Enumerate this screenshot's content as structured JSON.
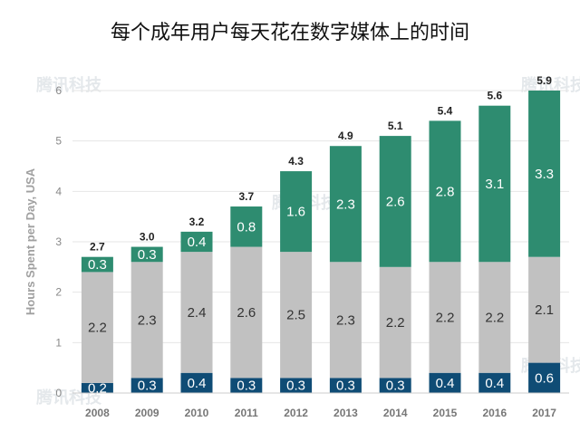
{
  "title": "每个成年用户每天花在数字媒体上的时间",
  "watermark": "腾讯科技",
  "chart_data": {
    "type": "bar",
    "stacked": true,
    "title": "每个成年用户每天花在数字媒体上的时间",
    "ylabel": "Hours Spent per Day, USA",
    "xlabel": "",
    "ylim": [
      0,
      6
    ],
    "yticks": [
      "0",
      "1",
      "2",
      "3",
      "4",
      "5",
      "6"
    ],
    "grid": true,
    "categories": [
      "2008",
      "2009",
      "2010",
      "2011",
      "2012",
      "2013",
      "2014",
      "2015",
      "2016",
      "2017"
    ],
    "series": [
      {
        "color": "#0f4c75",
        "text_color": "#ffffff",
        "values": [
          0.2,
          0.3,
          0.4,
          0.3,
          0.3,
          0.3,
          0.3,
          0.4,
          0.4,
          0.6
        ]
      },
      {
        "color": "#c1c1c1",
        "text_color": "#333333",
        "values": [
          2.2,
          2.3,
          2.4,
          2.6,
          2.5,
          2.3,
          2.2,
          2.2,
          2.2,
          2.1
        ]
      },
      {
        "color": "#2e8c70",
        "text_color": "#ffffff",
        "values": [
          0.3,
          0.3,
          0.4,
          0.8,
          1.6,
          2.3,
          2.6,
          2.8,
          3.1,
          3.3
        ]
      }
    ],
    "totals": [
      "2.7",
      "3.0",
      "3.2",
      "3.7",
      "4.3",
      "4.9",
      "5.1",
      "5.4",
      "5.6",
      "5.9"
    ]
  }
}
